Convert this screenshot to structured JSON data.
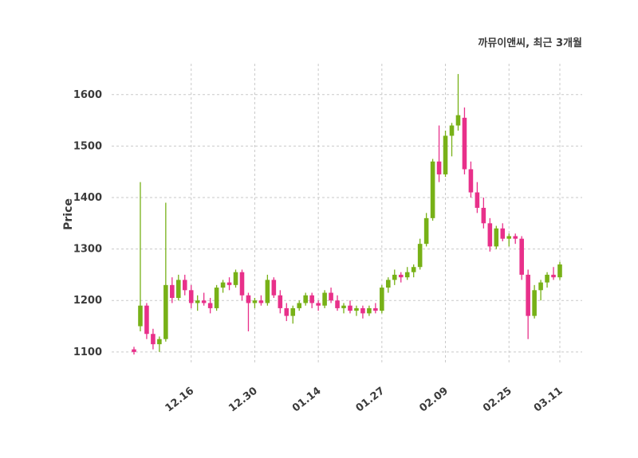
{
  "chart_data": {
    "type": "candlestick",
    "title": "까뮤이앤씨, 최근 3개월",
    "ylabel": "Price",
    "yticks": [
      1100,
      1200,
      1300,
      1400,
      1500,
      1600
    ],
    "ylim": [
      1075,
      1660
    ],
    "xtick_labels": [
      "12.16",
      "12.30",
      "01.14",
      "01.27",
      "02.09",
      "02.25",
      "03.11"
    ],
    "xtick_indices": [
      9,
      19,
      29,
      39,
      49,
      59,
      67
    ],
    "legend_position": "none",
    "grid": "dashed",
    "colors": {
      "up": "#77b117",
      "down": "#e8308a",
      "background": "#ffffff",
      "text": "#3b3b3b"
    },
    "candles_format": [
      "open",
      "high",
      "low",
      "close"
    ],
    "candles": [
      [
        1105,
        1110,
        1095,
        1100
      ],
      [
        1150,
        1430,
        1140,
        1190
      ],
      [
        1190,
        1195,
        1125,
        1135
      ],
      [
        1135,
        1145,
        1105,
        1115
      ],
      [
        1115,
        1130,
        1100,
        1125
      ],
      [
        1125,
        1390,
        1120,
        1230
      ],
      [
        1230,
        1245,
        1195,
        1205
      ],
      [
        1205,
        1250,
        1200,
        1240
      ],
      [
        1240,
        1250,
        1210,
        1220
      ],
      [
        1220,
        1230,
        1185,
        1195
      ],
      [
        1195,
        1210,
        1180,
        1200
      ],
      [
        1200,
        1215,
        1190,
        1195
      ],
      [
        1195,
        1205,
        1175,
        1185
      ],
      [
        1185,
        1230,
        1180,
        1225
      ],
      [
        1225,
        1240,
        1215,
        1235
      ],
      [
        1235,
        1245,
        1220,
        1230
      ],
      [
        1230,
        1260,
        1225,
        1255
      ],
      [
        1255,
        1260,
        1200,
        1210
      ],
      [
        1210,
        1215,
        1140,
        1195
      ],
      [
        1195,
        1205,
        1185,
        1200
      ],
      [
        1200,
        1210,
        1190,
        1195
      ],
      [
        1195,
        1250,
        1190,
        1240
      ],
      [
        1240,
        1245,
        1205,
        1210
      ],
      [
        1210,
        1220,
        1175,
        1185
      ],
      [
        1185,
        1195,
        1160,
        1170
      ],
      [
        1170,
        1190,
        1155,
        1185
      ],
      [
        1185,
        1200,
        1180,
        1195
      ],
      [
        1195,
        1215,
        1190,
        1210
      ],
      [
        1210,
        1215,
        1185,
        1195
      ],
      [
        1195,
        1200,
        1180,
        1190
      ],
      [
        1190,
        1220,
        1185,
        1215
      ],
      [
        1215,
        1225,
        1195,
        1200
      ],
      [
        1200,
        1210,
        1180,
        1185
      ],
      [
        1185,
        1195,
        1175,
        1190
      ],
      [
        1190,
        1200,
        1175,
        1180
      ],
      [
        1180,
        1190,
        1170,
        1185
      ],
      [
        1185,
        1190,
        1165,
        1175
      ],
      [
        1175,
        1190,
        1170,
        1185
      ],
      [
        1185,
        1195,
        1175,
        1180
      ],
      [
        1180,
        1230,
        1175,
        1225
      ],
      [
        1225,
        1245,
        1215,
        1240
      ],
      [
        1240,
        1260,
        1230,
        1250
      ],
      [
        1250,
        1255,
        1235,
        1245
      ],
      [
        1245,
        1265,
        1240,
        1255
      ],
      [
        1255,
        1270,
        1245,
        1265
      ],
      [
        1265,
        1320,
        1260,
        1310
      ],
      [
        1310,
        1370,
        1305,
        1360
      ],
      [
        1360,
        1475,
        1355,
        1470
      ],
      [
        1470,
        1540,
        1430,
        1445
      ],
      [
        1445,
        1530,
        1440,
        1520
      ],
      [
        1520,
        1545,
        1480,
        1540
      ],
      [
        1540,
        1640,
        1530,
        1560
      ],
      [
        1555,
        1575,
        1445,
        1455
      ],
      [
        1455,
        1470,
        1400,
        1410
      ],
      [
        1410,
        1430,
        1370,
        1380
      ],
      [
        1380,
        1400,
        1340,
        1350
      ],
      [
        1350,
        1360,
        1295,
        1305
      ],
      [
        1305,
        1345,
        1300,
        1340
      ],
      [
        1340,
        1350,
        1315,
        1320
      ],
      [
        1320,
        1330,
        1305,
        1325
      ],
      [
        1325,
        1330,
        1310,
        1320
      ],
      [
        1320,
        1325,
        1240,
        1250
      ],
      [
        1250,
        1260,
        1125,
        1170
      ],
      [
        1170,
        1230,
        1165,
        1220
      ],
      [
        1220,
        1240,
        1200,
        1235
      ],
      [
        1235,
        1255,
        1225,
        1250
      ],
      [
        1250,
        1265,
        1240,
        1245
      ],
      [
        1245,
        1275,
        1240,
        1270
      ]
    ]
  }
}
